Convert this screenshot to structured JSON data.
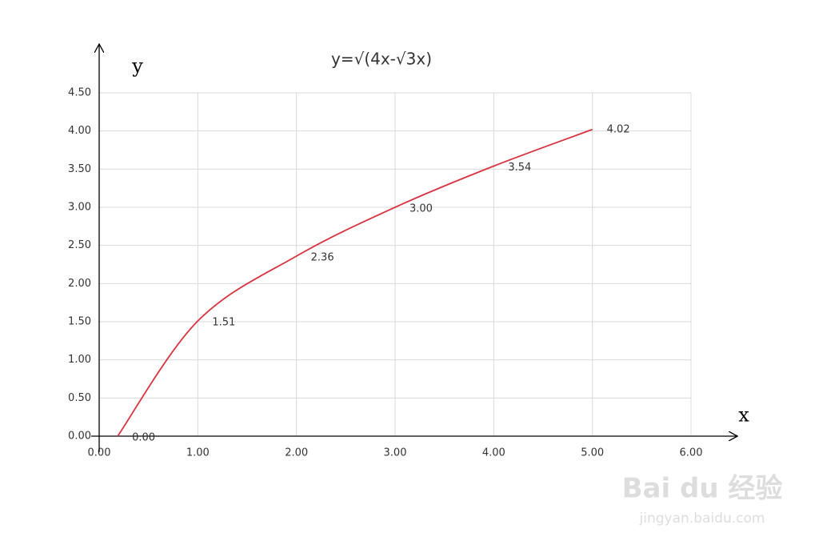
{
  "chart_data": {
    "type": "line",
    "title": "y=√(4x-√3x)",
    "x_label": "x",
    "y_label": "y",
    "x": [
      0.1875,
      1,
      2,
      3,
      4,
      5
    ],
    "series": [
      {
        "color": "#d9333f",
        "values": [
          0,
          1.51,
          2.36,
          3.0,
          3.54,
          4.02
        ],
        "value_labels": [
          "0.00",
          "1.51",
          "2.36",
          "3.00",
          "3.54",
          "4.02"
        ]
      }
    ],
    "xlim": [
      0,
      6
    ],
    "xticks": [
      {
        "value": 0,
        "label": "0.00"
      },
      {
        "value": 1,
        "label": "1.00"
      },
      {
        "value": 2,
        "label": "2.00"
      },
      {
        "value": 3,
        "label": "3.00"
      },
      {
        "value": 4,
        "label": "4.00"
      },
      {
        "value": 5,
        "label": "5.00"
      },
      {
        "value": 6,
        "label": "6.00"
      }
    ],
    "ylim": [
      0,
      4.5
    ],
    "yticks": [
      {
        "value": 0,
        "label": "0.00"
      },
      {
        "value": 0.5,
        "label": "0.50"
      },
      {
        "value": 1,
        "label": "1.00"
      },
      {
        "value": 1.5,
        "label": "1.50"
      },
      {
        "value": 2,
        "label": "2.00"
      },
      {
        "value": 2.5,
        "label": "2.50"
      },
      {
        "value": 3,
        "label": "3.00"
      },
      {
        "value": 3.5,
        "label": "3.50"
      },
      {
        "value": 4,
        "label": "4.00"
      },
      {
        "value": 4.5,
        "label": "4.50"
      }
    ],
    "grid": true
  },
  "watermark": {
    "brand": "Bai du 经验",
    "url": "jingyan.baidu.com"
  }
}
